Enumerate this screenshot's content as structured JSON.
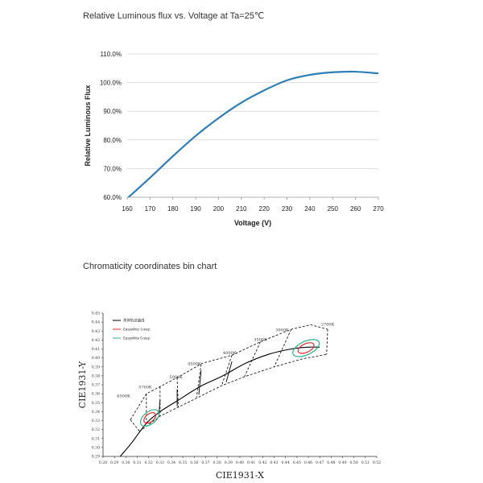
{
  "chart_data": [
    {
      "type": "line",
      "title": "Relative Luminous flux vs. Voltage at Ta=25℃",
      "xlabel": "Voltage (V)",
      "ylabel": "Relative Luminous Flux",
      "x": [
        160,
        170,
        180,
        190,
        200,
        210,
        220,
        230,
        240,
        250,
        260,
        270
      ],
      "y": [
        59.6,
        66.8,
        74.3,
        81.4,
        87.6,
        93.0,
        97.3,
        100.8,
        102.7,
        103.6,
        103.8,
        103.2
      ],
      "xlim": [
        160,
        270
      ],
      "ylim": [
        60,
        110
      ],
      "xticks": [
        "160",
        "170",
        "180",
        "190",
        "200",
        "210",
        "220",
        "230",
        "240",
        "250",
        "260",
        "270"
      ],
      "yticks": [
        "60.0%",
        "70.0%",
        "80.0%",
        "90.0%",
        "100.0%",
        "110.0%"
      ],
      "grid": true,
      "color": "#2e7fb5"
    },
    {
      "type": "scatter",
      "title": "Chromaticity coordinates bin chart",
      "xlabel": "CIE1931-X",
      "ylabel": "CIE1931-Y",
      "xlim": [
        0.28,
        0.52
      ],
      "ylim": [
        0.29,
        0.45
      ],
      "xticks": [
        "0.28",
        "0.29",
        "0.30",
        "0.31",
        "0.32",
        "0.33",
        "0.34",
        "0.35",
        "0.36",
        "0.37",
        "0.38",
        "0.39",
        "0.40",
        "0.41",
        "0.42",
        "0.43",
        "0.44",
        "0.45",
        "0.46",
        "0.47",
        "0.48",
        "0.49",
        "0.50",
        "0.51",
        "0.52"
      ],
      "yticks": [
        "0.29",
        "0.30",
        "0.31",
        "0.32",
        "0.33",
        "0.34",
        "0.35",
        "0.36",
        "0.37",
        "0.38",
        "0.39",
        "0.40",
        "0.41",
        "0.42",
        "0.43",
        "0.44",
        "0.45"
      ],
      "legend": [
        {
          "name": "黑体轨迹曲线",
          "color": "#000000"
        },
        {
          "name": "Easywhite 3-step",
          "color": "#e03030"
        },
        {
          "name": "Easywhite 5-step",
          "color": "#2bb38a"
        }
      ],
      "legend_position": "top-left",
      "cct_labels": [
        {
          "label": "6500K",
          "x": 0.298,
          "y": 0.356
        },
        {
          "label": "5700K",
          "x": 0.317,
          "y": 0.366
        },
        {
          "label": "5000K",
          "x": 0.344,
          "y": 0.377
        },
        {
          "label": "4500K",
          "x": 0.36,
          "y": 0.392
        },
        {
          "label": "4000K",
          "x": 0.391,
          "y": 0.404
        },
        {
          "label": "3500K",
          "x": 0.418,
          "y": 0.419
        },
        {
          "label": "3000K",
          "x": 0.437,
          "y": 0.43
        },
        {
          "label": "2700K",
          "x": 0.477,
          "y": 0.436
        }
      ],
      "planckian_locus": [
        {
          "x": 0.295,
          "y": 0.29
        },
        {
          "x": 0.305,
          "y": 0.305
        },
        {
          "x": 0.318,
          "y": 0.327
        },
        {
          "x": 0.33,
          "y": 0.34
        },
        {
          "x": 0.345,
          "y": 0.352
        },
        {
          "x": 0.365,
          "y": 0.368
        },
        {
          "x": 0.385,
          "y": 0.38
        },
        {
          "x": 0.405,
          "y": 0.394
        },
        {
          "x": 0.425,
          "y": 0.404
        },
        {
          "x": 0.445,
          "y": 0.41
        },
        {
          "x": 0.46,
          "y": 0.412
        },
        {
          "x": 0.47,
          "y": 0.412
        }
      ],
      "bin_upper_boundary": [
        {
          "x": 0.304,
          "y": 0.331
        },
        {
          "x": 0.318,
          "y": 0.36
        },
        {
          "x": 0.345,
          "y": 0.378
        },
        {
          "x": 0.367,
          "y": 0.394
        },
        {
          "x": 0.393,
          "y": 0.403
        },
        {
          "x": 0.418,
          "y": 0.418
        },
        {
          "x": 0.445,
          "y": 0.432
        },
        {
          "x": 0.462,
          "y": 0.437
        },
        {
          "x": 0.477,
          "y": 0.432
        }
      ],
      "bin_lower_boundary": [
        {
          "x": 0.312,
          "y": 0.318
        },
        {
          "x": 0.33,
          "y": 0.335
        },
        {
          "x": 0.346,
          "y": 0.345
        },
        {
          "x": 0.365,
          "y": 0.357
        },
        {
          "x": 0.384,
          "y": 0.369
        },
        {
          "x": 0.404,
          "y": 0.379
        },
        {
          "x": 0.43,
          "y": 0.39
        },
        {
          "x": 0.455,
          "y": 0.399
        },
        {
          "x": 0.476,
          "y": 0.404
        }
      ],
      "bin_dividers": [
        [
          {
            "x": 0.318,
            "y": 0.36
          },
          {
            "x": 0.318,
            "y": 0.326
          }
        ],
        [
          {
            "x": 0.33,
            "y": 0.368
          },
          {
            "x": 0.33,
            "y": 0.335
          }
        ],
        [
          {
            "x": 0.345,
            "y": 0.378
          },
          {
            "x": 0.346,
            "y": 0.345
          }
        ],
        [
          {
            "x": 0.366,
            "y": 0.393
          },
          {
            "x": 0.362,
            "y": 0.356
          }
        ],
        [
          {
            "x": 0.393,
            "y": 0.403
          },
          {
            "x": 0.384,
            "y": 0.369
          }
        ],
        [
          {
            "x": 0.418,
            "y": 0.418
          },
          {
            "x": 0.404,
            "y": 0.379
          }
        ],
        [
          {
            "x": 0.445,
            "y": 0.432
          },
          {
            "x": 0.43,
            "y": 0.39
          }
        ]
      ],
      "ellipses": [
        {
          "cx": 0.321,
          "cy": 0.333,
          "rx": 0.006,
          "ry": 0.0045,
          "angle": -38,
          "series": "Easywhite 3-step"
        },
        {
          "cx": 0.321,
          "cy": 0.333,
          "rx": 0.0095,
          "ry": 0.0068,
          "angle": -38,
          "series": "Easywhite 5-step"
        },
        {
          "cx": 0.458,
          "cy": 0.411,
          "rx": 0.0075,
          "ry": 0.0048,
          "angle": -25,
          "series": "Easywhite 3-step"
        },
        {
          "cx": 0.458,
          "cy": 0.411,
          "rx": 0.0125,
          "ry": 0.0075,
          "angle": -25,
          "series": "Easywhite 5-step"
        }
      ]
    }
  ]
}
